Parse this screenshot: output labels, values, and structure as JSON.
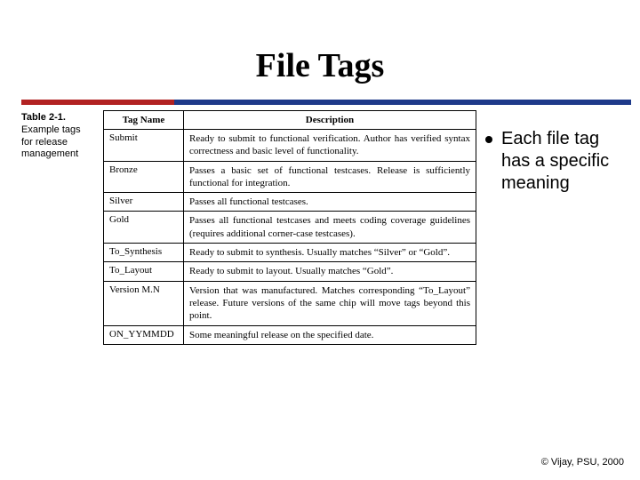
{
  "title": "File Tags",
  "accent": {
    "red": "#b22222",
    "blue": "#1e3a8a"
  },
  "caption": {
    "bold": "Table 2-1.",
    "rest_line1": "Example tags",
    "rest_line2": "for release",
    "rest_line3": "management"
  },
  "table": {
    "headers": {
      "col1": "Tag Name",
      "col2": "Description"
    },
    "rows": [
      {
        "name": "Submit",
        "desc": "Ready to submit to functional verification. Author has verified syntax correctness and basic level of functionality."
      },
      {
        "name": "Bronze",
        "desc": "Passes a basic set of functional testcases. Release is sufficiently functional for integration."
      },
      {
        "name": "Silver",
        "desc": "Passes all functional testcases."
      },
      {
        "name": "Gold",
        "desc": "Passes all functional testcases and meets coding coverage guidelines (requires additional corner-case testcases)."
      },
      {
        "name": "To_Synthesis",
        "desc": "Ready to submit to synthesis. Usually matches “Silver” or “Gold”."
      },
      {
        "name": "To_Layout",
        "desc": "Ready to submit to layout. Usually matches “Gold”."
      },
      {
        "name": "Version M.N",
        "desc": "Version that was manufactured. Matches corresponding “To_Layout” release. Future versions of the same chip will move tags beyond this point."
      },
      {
        "name": "ON_YYMMDD",
        "desc": "Some meaningful release on the specified date."
      }
    ]
  },
  "bullet": "Each file tag has a specific meaning",
  "footer": "© Vijay, PSU, 2000"
}
